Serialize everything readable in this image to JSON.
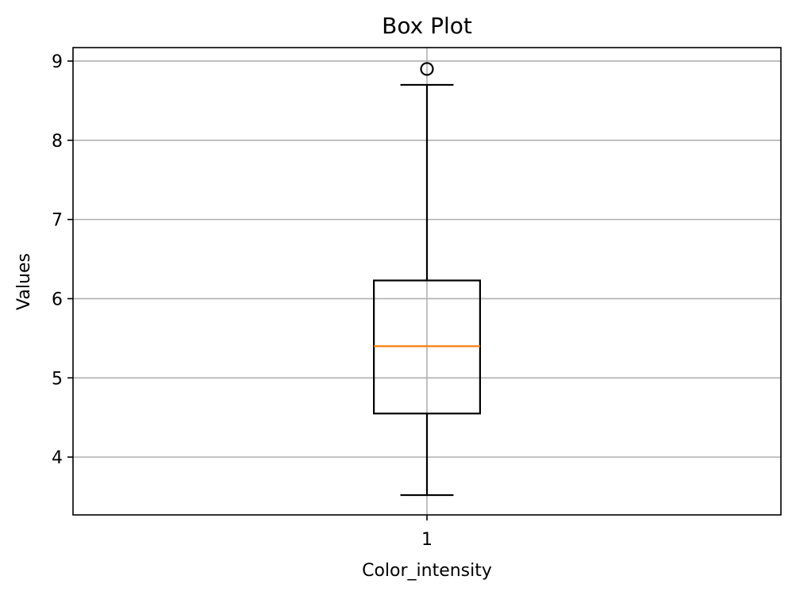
{
  "chart_data": {
    "type": "box",
    "title": "Box Plot",
    "xlabel": "Color_intensity",
    "ylabel": "Values",
    "categories": [
      "1"
    ],
    "ylim": [
      3.27,
      9.17
    ],
    "yticks": [
      4,
      5,
      6,
      7,
      8,
      9
    ],
    "grid": true,
    "boxes": [
      {
        "category": "1",
        "whisker_low": 3.52,
        "q1": 4.55,
        "median": 5.4,
        "q3": 6.23,
        "whisker_high": 8.7,
        "outliers": [
          8.9
        ]
      }
    ],
    "colors": {
      "box": "#000000",
      "median": "#ff7f0e",
      "grid": "#b0b0b0"
    }
  }
}
